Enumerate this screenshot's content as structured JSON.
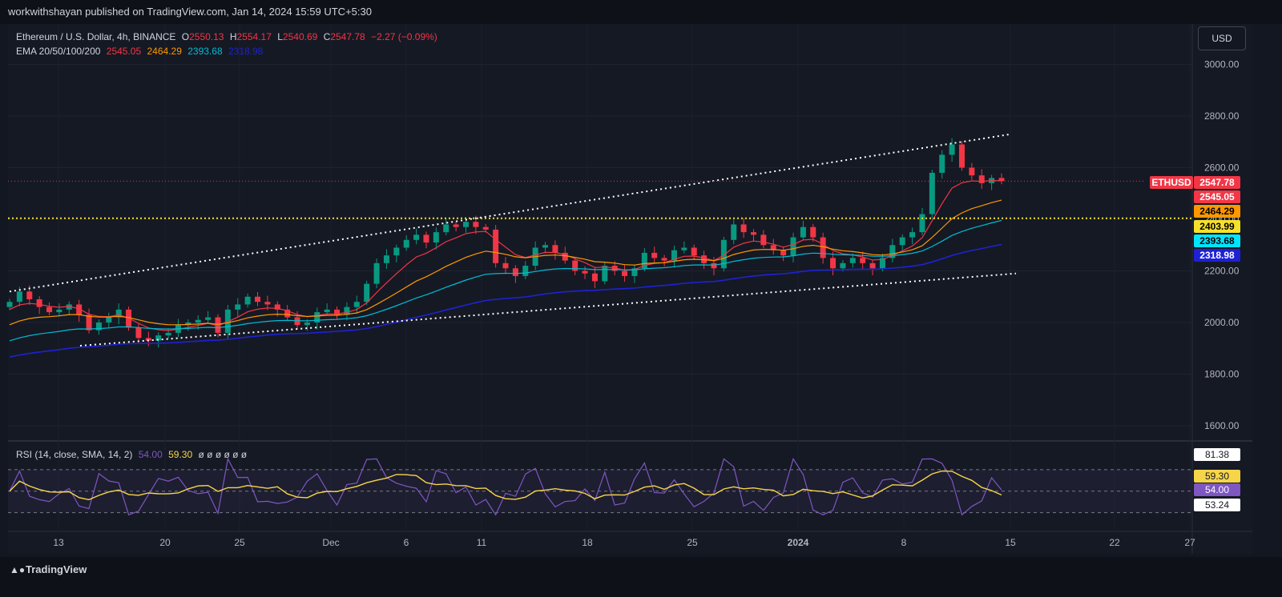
{
  "header": {
    "publisher_text": "workwithshayan published on TradingView.com, Jan 14, 2024 15:59 UTC+5:30"
  },
  "symbol": {
    "title": "Ethereum / U.S. Dollar, 4h, BINANCE",
    "open_label": "O",
    "open": "2550.13",
    "high_label": "H",
    "high": "2554.17",
    "low_label": "L",
    "low": "2540.69",
    "close_label": "C",
    "close": "2547.78",
    "change": "−2.27 (−0.09%)"
  },
  "ema": {
    "label": "EMA 20/50/100/200",
    "values": [
      "2545.05",
      "2464.29",
      "2393.68",
      "2318.98"
    ],
    "colors": [
      "#f23645",
      "#ff9800",
      "#00bcd4",
      "#1e22d4"
    ]
  },
  "currency_button": "USD",
  "price_axis": {
    "ticks": [
      "3000.00",
      "2800.00",
      "2600.00",
      "2400.00",
      "2200.00",
      "2000.00",
      "1800.00",
      "1600.00"
    ]
  },
  "price_labels": {
    "symbol": "ETHUSD",
    "last": "2547.78",
    "ema20": "2545.05",
    "ema50": "2464.29",
    "horizontal_line": "2403.99",
    "ema100": "2393.68",
    "ema200": "2318.98"
  },
  "rsi": {
    "label": "RSI (14, close, SMA, 14, 2)",
    "value": "54.00",
    "sma": "59.30",
    "placeholders": "ø ø ø ø ø ø",
    "axis_labels": [
      "81.38",
      "59.30",
      "54.00",
      "53.24"
    ],
    "colors": {
      "rsi": "#7e57c2",
      "sma": "#f7d54a"
    }
  },
  "time_axis": {
    "ticks": [
      "13",
      "20",
      "25",
      "Dec",
      "6",
      "11",
      "18",
      "25",
      "2024",
      "8",
      "15",
      "22",
      "27"
    ]
  },
  "footer": {
    "brand": "TradingView"
  },
  "chart_data": {
    "type": "candlestick",
    "instrument": "ETHUSD",
    "interval": "4h",
    "x_ticks": [
      "13",
      "20",
      "25",
      "Dec",
      "6",
      "11",
      "18",
      "25",
      "2024",
      "8",
      "15",
      "22",
      "27"
    ],
    "y_range": [
      1580,
      3080
    ],
    "ema_series": [
      {
        "name": "EMA 20",
        "last": 2545.05
      },
      {
        "name": "EMA 50",
        "last": 2464.29
      },
      {
        "name": "EMA 100",
        "last": 2393.68
      },
      {
        "name": "EMA 200",
        "last": 2318.98
      }
    ],
    "close_path": [
      2080,
      2120,
      2090,
      2060,
      2040,
      2050,
      2070,
      2030,
      1970,
      2000,
      2020,
      2050,
      1980,
      1940,
      1930,
      1950,
      1960,
      1990,
      2000,
      2010,
      2020,
      1960,
      2050,
      2070,
      2100,
      2080,
      2070,
      2050,
      2020,
      1990,
      2000,
      2040,
      2050,
      2030,
      2060,
      2080,
      2150,
      2230,
      2260,
      2290,
      2320,
      2340,
      2310,
      2350,
      2380,
      2370,
      2390,
      2370,
      2360,
      2230,
      2210,
      2180,
      2220,
      2290,
      2300,
      2270,
      2240,
      2200,
      2190,
      2160,
      2220,
      2200,
      2180,
      2210,
      2270,
      2250,
      2240,
      2280,
      2290,
      2260,
      2230,
      2210,
      2320,
      2380,
      2350,
      2340,
      2300,
      2280,
      2260,
      2330,
      2370,
      2330,
      2250,
      2210,
      2230,
      2250,
      2230,
      2210,
      2250,
      2300,
      2330,
      2350,
      2420,
      2580,
      2650,
      2690,
      2600,
      2570,
      2540,
      2560,
      2548
    ],
    "resistance_line": [
      [
        2120,
        0
      ],
      [
        2730,
        1
      ]
    ],
    "support_line": [
      [
        1910,
        0
      ],
      [
        2190,
        1
      ]
    ],
    "horizontal_level": 2403.99,
    "rsi_levels": [
      70,
      50,
      30
    ]
  }
}
